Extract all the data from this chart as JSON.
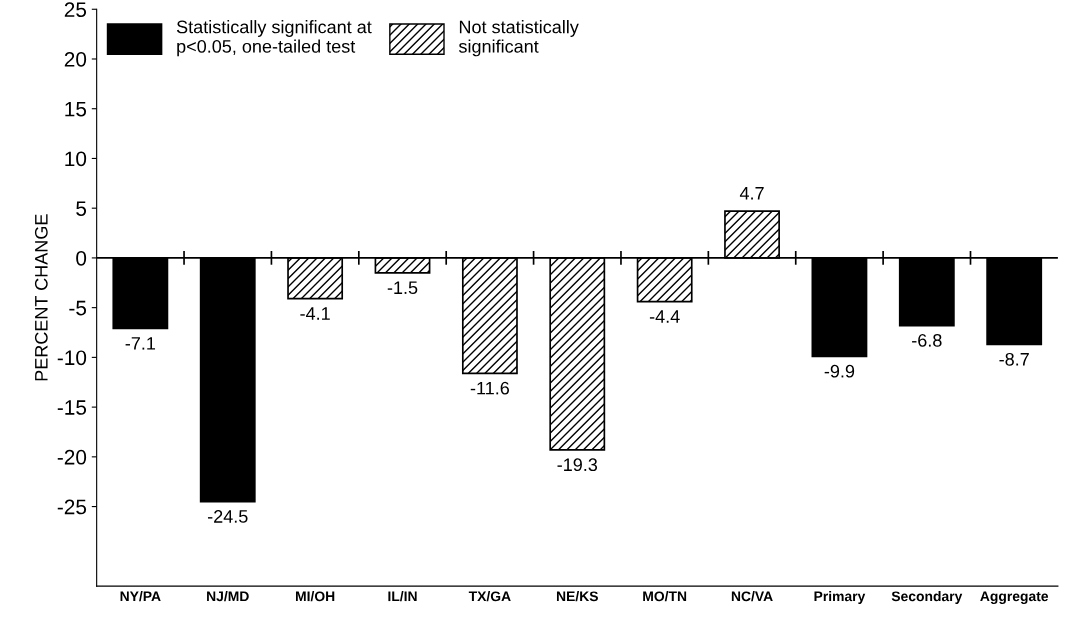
{
  "chart_data": {
    "type": "bar",
    "ylabel": "PERCENT CHANGE",
    "categories": [
      "NY/PA",
      "NJ/MD",
      "MI/OH",
      "IL/IN",
      "TX/GA",
      "NE/KS",
      "MO/TN",
      "NC/VA",
      "Primary",
      "Secondary",
      "Aggregate"
    ],
    "series": [
      {
        "name": "Statistically significant at\np<0.05, one-tailed test",
        "color": "#000000",
        "values": [
          -7.1,
          -24.5,
          null,
          null,
          null,
          null,
          null,
          null,
          -9.9,
          -6.8,
          -8.7
        ]
      },
      {
        "name": "Not statistically\nsignificant",
        "color": "#000000",
        "values": [
          null,
          null,
          -4.1,
          -1.5,
          -11.6,
          -19.3,
          -4.4,
          4.7,
          null,
          null,
          null
        ]
      }
    ],
    "ylim": [
      -33,
      25
    ],
    "yticks": [
      25,
      20,
      15,
      10,
      5,
      0,
      -5,
      -10,
      -15,
      -20,
      -25
    ],
    "data_labels": true,
    "legend": "top left"
  }
}
